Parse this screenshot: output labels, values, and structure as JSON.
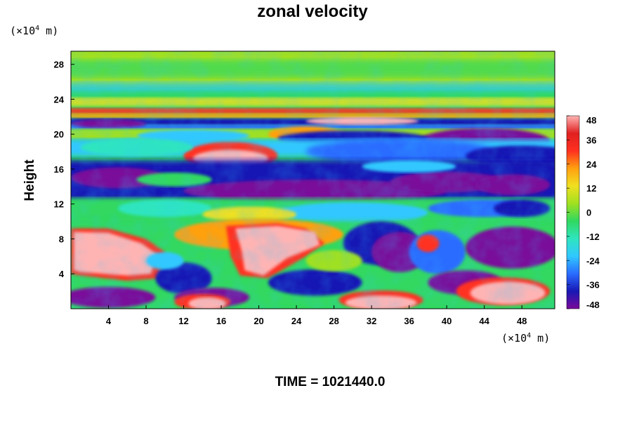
{
  "chart_data": {
    "type": "heatmap",
    "title": "zonal velocity",
    "ylabel": "Height",
    "x_unit": {
      "prefix": "(×10",
      "exp": "4",
      "suffix": " m)"
    },
    "y_unit": {
      "prefix": "(×10",
      "exp": "4",
      "suffix": " m)"
    },
    "x_ticks": [
      4,
      8,
      12,
      16,
      20,
      24,
      28,
      32,
      36,
      40,
      44,
      48
    ],
    "y_ticks": [
      4,
      8,
      12,
      16,
      20,
      24,
      28
    ],
    "xlim": [
      0,
      51.5
    ],
    "ylim": [
      0,
      29.5
    ],
    "colorbar": {
      "ticks": [
        48,
        36,
        24,
        12,
        0,
        -12,
        -24,
        -36,
        -48
      ],
      "range": [
        -48,
        48
      ],
      "colors": [
        "#7a0a9a",
        "#1818b4",
        "#2a6cff",
        "#30c8ff",
        "#2fe5bf",
        "#30d860",
        "#a0e020",
        "#f0e020",
        "#ffa010",
        "#ff3020",
        "#e02020",
        "#ffb4b4"
      ]
    },
    "field_description": "velocity field: strong positive (pink) cores near surface at x 0-10, 16-26, 36-50; negative (purple) layers near y 13-16 and 19-21; wavy jet bands at y 21-23",
    "footer": "TIME = 1021440.0"
  }
}
